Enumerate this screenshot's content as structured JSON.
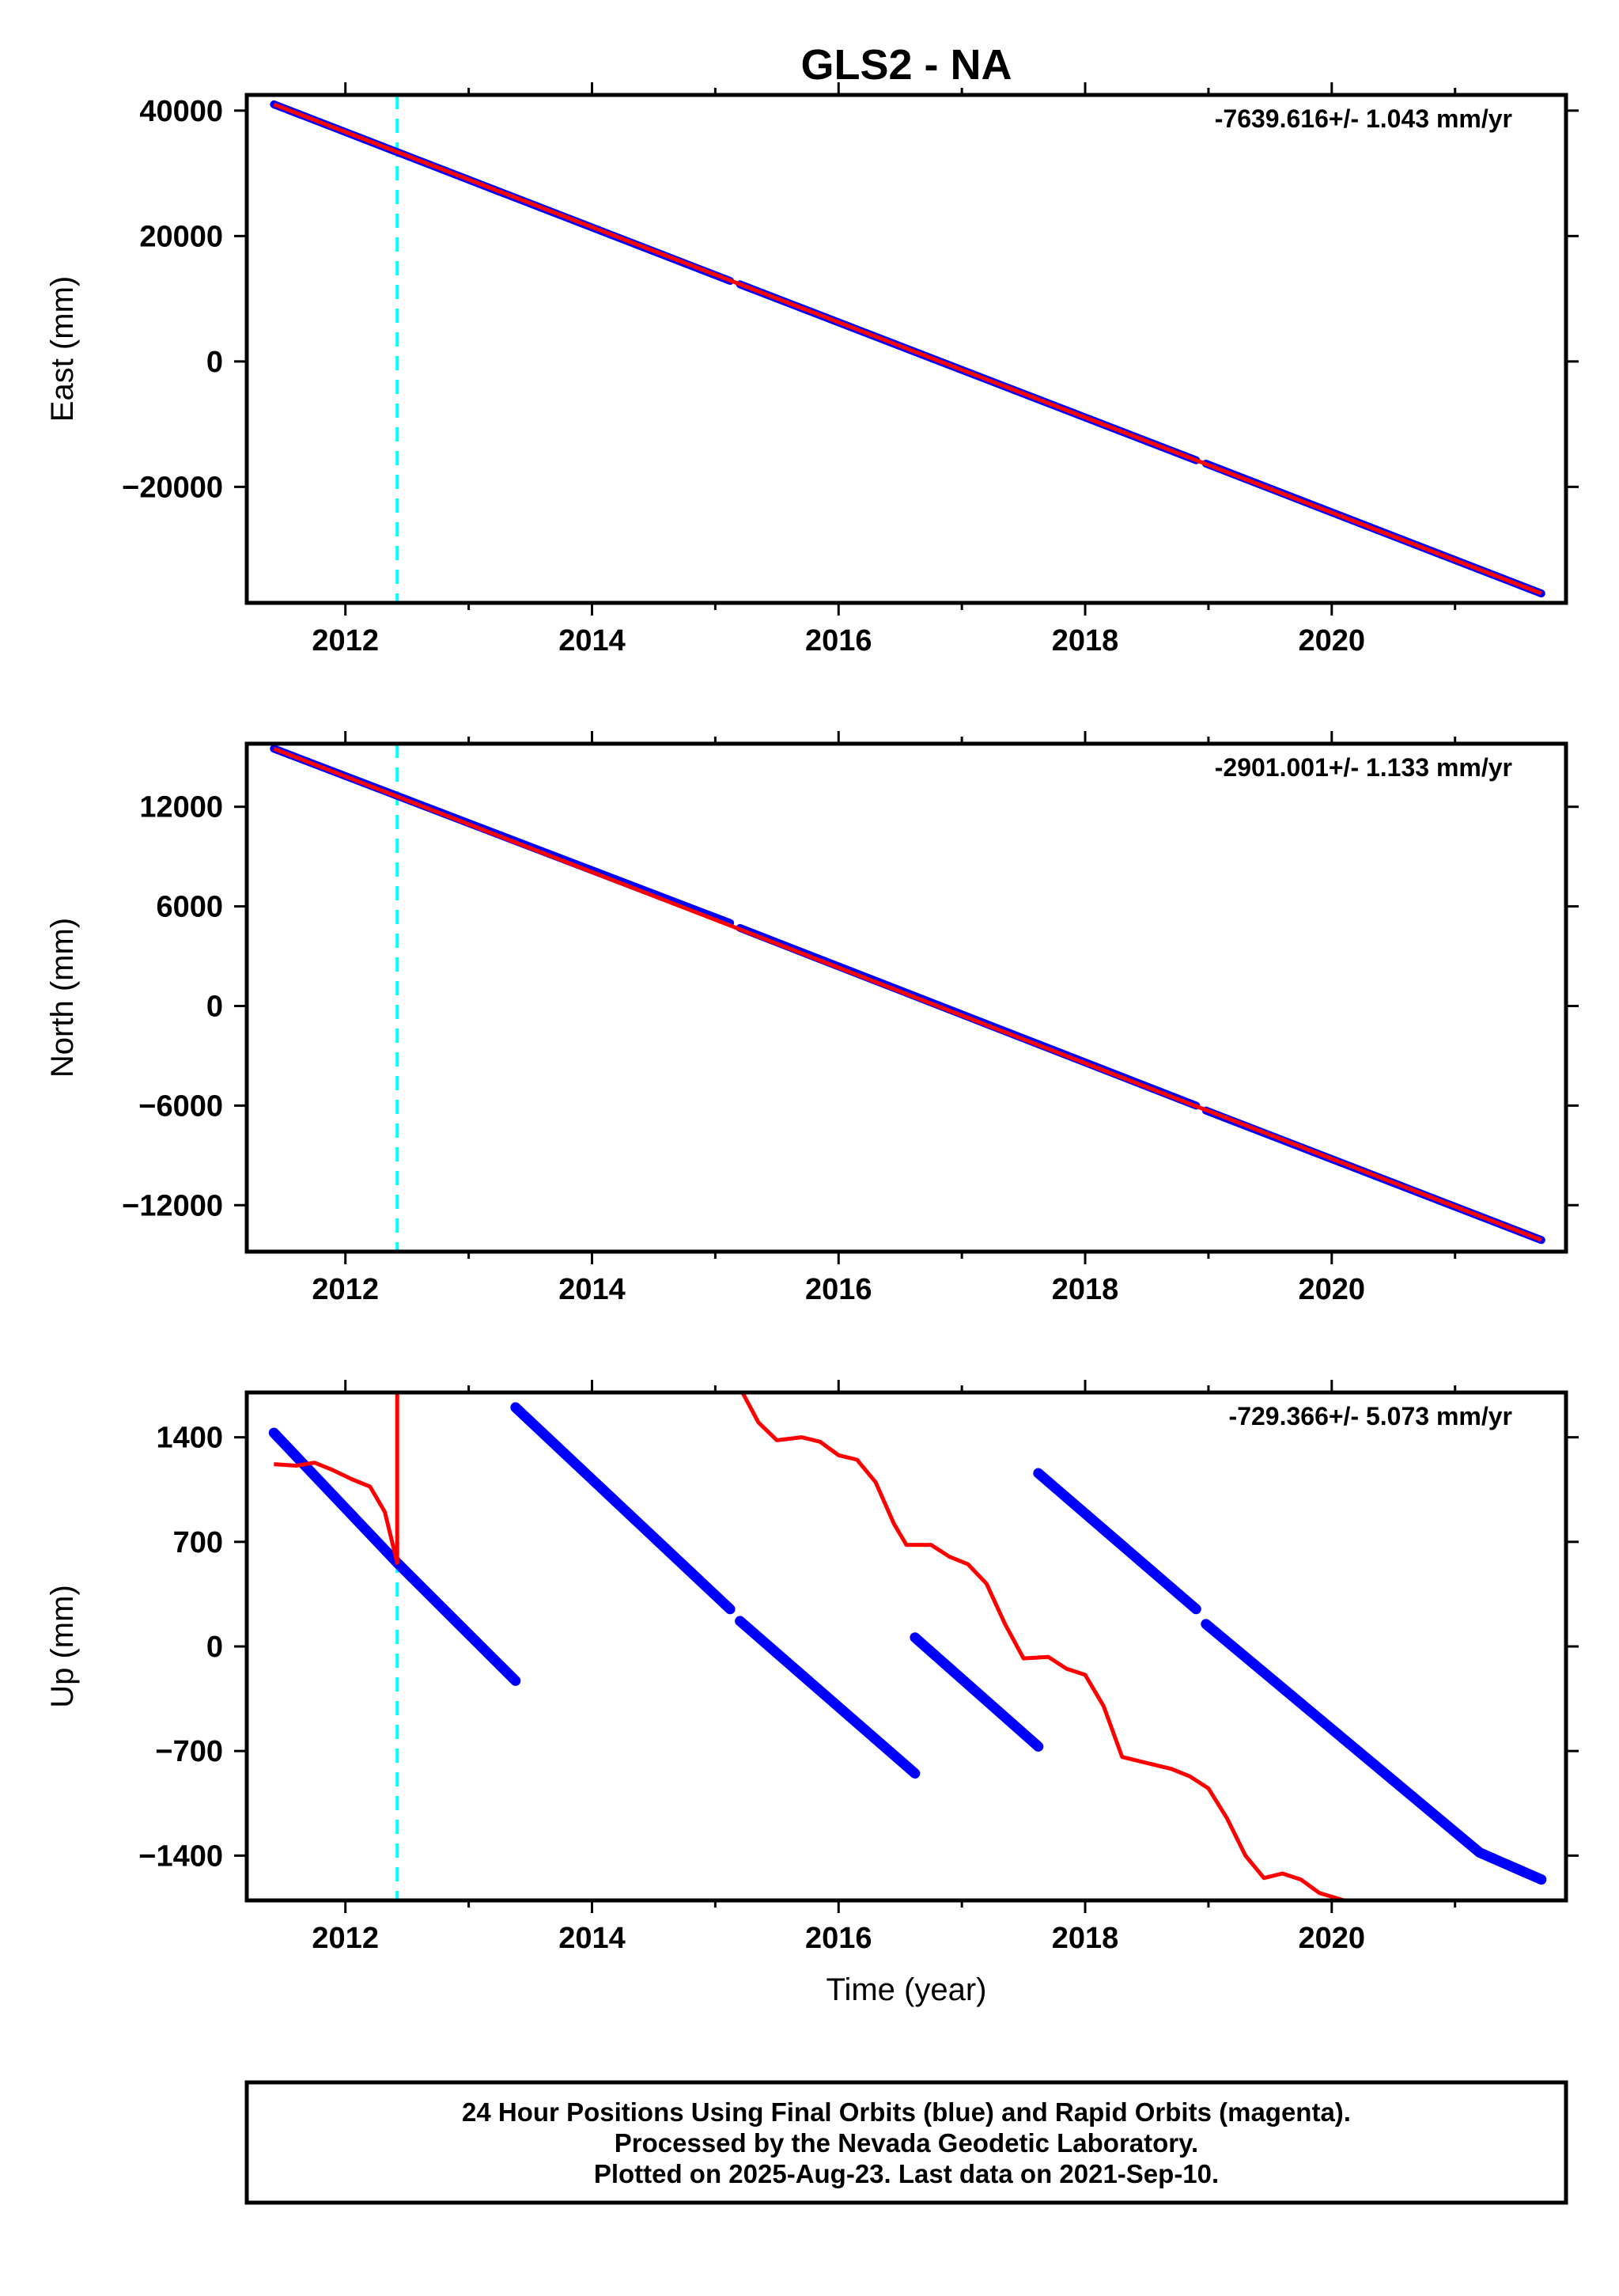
{
  "title": "GLS2 - NA",
  "xlabel": "Time (year)",
  "footer": {
    "lines": [
      "24 Hour Positions Using Final Orbits (blue) and Rapid Orbits (magenta).",
      "Processed by the Nevada Geodetic Laboratory.",
      "Plotted on 2025-Aug-23. Last data on 2021-Sep-10."
    ]
  },
  "colors": {
    "final": "#0000ff",
    "rapid": "#ff0000",
    "event": "#00ffff",
    "frame": "#000000"
  },
  "chart_data": [
    {
      "type": "scatter",
      "ylabel": "East (mm)",
      "rate": "-7639.616+/- 1.043 mm/yr",
      "xlim": [
        2011.2,
        2021.9
      ],
      "ylim": [
        -38500,
        42500
      ],
      "x_ticks": [
        2012,
        2014,
        2016,
        2018,
        2020
      ],
      "x_tick_labels": [
        "2012",
        "2014",
        "2016",
        "2018",
        "2020"
      ],
      "y_ticks": [
        40000,
        20000,
        0,
        -20000
      ],
      "y_tick_labels": [
        "40000",
        "20000",
        "0",
        "−20000"
      ],
      "event_x": 2012.42,
      "final_segments": [
        [
          [
            2011.42,
            41000
          ],
          [
            2015.12,
            12850
          ]
        ],
        [
          [
            2015.2,
            12300
          ],
          [
            2018.9,
            -15750
          ]
        ],
        [
          [
            2018.98,
            -16300
          ],
          [
            2021.7,
            -37000
          ]
        ]
      ],
      "rapid_curve": [
        [
          2011.42,
          41000
        ],
        [
          2021.7,
          -37000
        ]
      ]
    },
    {
      "type": "scatter",
      "ylabel": "North (mm)",
      "rate": "-2901.001+/- 1.133 mm/yr",
      "xlim": [
        2011.2,
        2021.9
      ],
      "ylim": [
        -14800,
        15800
      ],
      "x_ticks": [
        2012,
        2014,
        2016,
        2018,
        2020
      ],
      "x_tick_labels": [
        "2012",
        "2014",
        "2016",
        "2018",
        "2020"
      ],
      "y_ticks": [
        12000,
        6000,
        0,
        -6000,
        -12000
      ],
      "y_tick_labels": [
        "12000",
        "6000",
        "0",
        "−6000",
        "−12000"
      ],
      "event_x": 2012.42,
      "final_segments": [
        [
          [
            2011.42,
            15500
          ],
          [
            2015.12,
            5000
          ]
        ],
        [
          [
            2015.2,
            4700
          ],
          [
            2018.9,
            -6000
          ]
        ],
        [
          [
            2018.98,
            -6300
          ],
          [
            2021.7,
            -14100
          ]
        ]
      ],
      "rapid_curve": [
        [
          2011.42,
          15500
        ],
        [
          2021.7,
          -14100
        ]
      ]
    },
    {
      "type": "scatter",
      "ylabel": "Up (mm)",
      "rate": "-729.366+/- 5.073 mm/yr",
      "xlim": [
        2011.2,
        2021.9
      ],
      "ylim": [
        -1700,
        1700
      ],
      "x_ticks": [
        2012,
        2014,
        2016,
        2018,
        2020
      ],
      "x_tick_labels": [
        "2012",
        "2014",
        "2016",
        "2018",
        "2020"
      ],
      "y_ticks": [
        1400,
        700,
        0,
        -700,
        -1400
      ],
      "y_tick_labels": [
        "1400",
        "700",
        "0",
        "−700",
        "−1400"
      ],
      "event_x": 2012.42,
      "final_segments": [
        [
          [
            2011.42,
            1430
          ],
          [
            2012.42,
            560
          ],
          [
            2013.38,
            -230
          ]
        ],
        [
          [
            2013.38,
            1600
          ],
          [
            2015.12,
            250
          ]
        ],
        [
          [
            2015.2,
            170
          ],
          [
            2016.62,
            -850
          ]
        ],
        [
          [
            2016.62,
            60
          ],
          [
            2017.62,
            -670
          ]
        ],
        [
          [
            2017.62,
            1160
          ],
          [
            2018.9,
            250
          ]
        ],
        [
          [
            2018.98,
            150
          ],
          [
            2021.2,
            -1380
          ],
          [
            2021.7,
            -1560
          ]
        ]
      ],
      "rapid_curve": [
        [
          2011.42,
          1220
        ],
        [
          2011.6,
          1210
        ],
        [
          2011.75,
          1230
        ],
        [
          2011.9,
          1180
        ],
        [
          2012.05,
          1120
        ],
        [
          2012.2,
          1070
        ],
        [
          2012.32,
          900
        ],
        [
          2012.42,
          560
        ],
        [
          2012.42,
          1700
        ],
        null,
        [
          2015.22,
          1700
        ],
        [
          2015.35,
          1500
        ],
        [
          2015.5,
          1380
        ],
        [
          2015.7,
          1400
        ],
        [
          2015.85,
          1370
        ],
        [
          2016.0,
          1280
        ],
        [
          2016.15,
          1250
        ],
        [
          2016.3,
          1100
        ],
        [
          2016.45,
          820
        ],
        [
          2016.55,
          680
        ],
        [
          2016.75,
          680
        ],
        [
          2016.9,
          600
        ],
        [
          2017.05,
          550
        ],
        [
          2017.2,
          420
        ],
        [
          2017.35,
          150
        ],
        [
          2017.5,
          -80
        ],
        [
          2017.7,
          -70
        ],
        [
          2017.85,
          -150
        ],
        [
          2018.0,
          -190
        ],
        [
          2018.15,
          -400
        ],
        [
          2018.3,
          -740
        ],
        [
          2018.5,
          -780
        ],
        [
          2018.7,
          -820
        ],
        [
          2018.85,
          -870
        ],
        [
          2019.0,
          -950
        ],
        [
          2019.15,
          -1150
        ],
        [
          2019.3,
          -1400
        ],
        [
          2019.45,
          -1550
        ],
        [
          2019.6,
          -1520
        ],
        [
          2019.75,
          -1560
        ],
        [
          2019.9,
          -1650
        ],
        [
          2020.1,
          -1700
        ]
      ]
    }
  ]
}
